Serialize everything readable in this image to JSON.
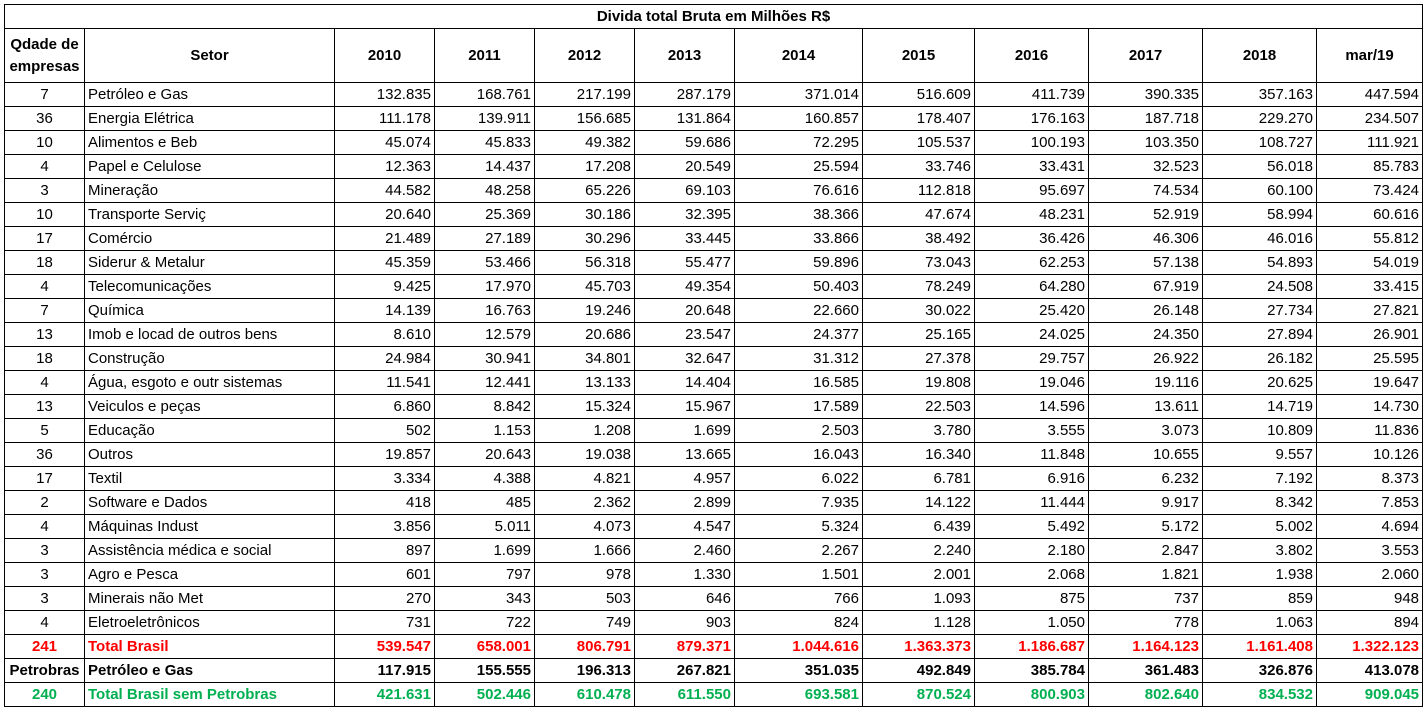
{
  "title": "Divida total Bruta em Milhões R$",
  "headers": {
    "qtd": "Qdade de empresas",
    "setor": "Setor",
    "years": [
      "2010",
      "2011",
      "2012",
      "2013",
      "2014",
      "2015",
      "2016",
      "2017",
      "2018",
      "mar/19"
    ]
  },
  "rows": [
    {
      "qtd": "7",
      "setor": "Petróleo e Gas",
      "values": [
        "132.835",
        "168.761",
        "217.199",
        "287.179",
        "371.014",
        "516.609",
        "411.739",
        "390.335",
        "357.163",
        "447.594"
      ]
    },
    {
      "qtd": "36",
      "setor": "Energia Elétrica",
      "values": [
        "111.178",
        "139.911",
        "156.685",
        "131.864",
        "160.857",
        "178.407",
        "176.163",
        "187.718",
        "229.270",
        "234.507"
      ]
    },
    {
      "qtd": "10",
      "setor": "Alimentos e Beb",
      "values": [
        "45.074",
        "45.833",
        "49.382",
        "59.686",
        "72.295",
        "105.537",
        "100.193",
        "103.350",
        "108.727",
        "111.921"
      ]
    },
    {
      "qtd": "4",
      "setor": "Papel e Celulose",
      "values": [
        "12.363",
        "14.437",
        "17.208",
        "20.549",
        "25.594",
        "33.746",
        "33.431",
        "32.523",
        "56.018",
        "85.783"
      ]
    },
    {
      "qtd": "3",
      "setor": "Mineração",
      "values": [
        "44.582",
        "48.258",
        "65.226",
        "69.103",
        "76.616",
        "112.818",
        "95.697",
        "74.534",
        "60.100",
        "73.424"
      ]
    },
    {
      "qtd": "10",
      "setor": "Transporte Serviç",
      "values": [
        "20.640",
        "25.369",
        "30.186",
        "32.395",
        "38.366",
        "47.674",
        "48.231",
        "52.919",
        "58.994",
        "60.616"
      ]
    },
    {
      "qtd": "17",
      "setor": "Comércio",
      "values": [
        "21.489",
        "27.189",
        "30.296",
        "33.445",
        "33.866",
        "38.492",
        "36.426",
        "46.306",
        "46.016",
        "55.812"
      ]
    },
    {
      "qtd": "18",
      "setor": "Siderur & Metalur",
      "values": [
        "45.359",
        "53.466",
        "56.318",
        "55.477",
        "59.896",
        "73.043",
        "62.253",
        "57.138",
        "54.893",
        "54.019"
      ]
    },
    {
      "qtd": "4",
      "setor": "Telecomunicações",
      "values": [
        "9.425",
        "17.970",
        "45.703",
        "49.354",
        "50.403",
        "78.249",
        "64.280",
        "67.919",
        "24.508",
        "33.415"
      ]
    },
    {
      "qtd": "7",
      "setor": "Química",
      "values": [
        "14.139",
        "16.763",
        "19.246",
        "20.648",
        "22.660",
        "30.022",
        "25.420",
        "26.148",
        "27.734",
        "27.821"
      ]
    },
    {
      "qtd": "13",
      "setor": "Imob e locad de outros bens",
      "values": [
        "8.610",
        "12.579",
        "20.686",
        "23.547",
        "24.377",
        "25.165",
        "24.025",
        "24.350",
        "27.894",
        "26.901"
      ]
    },
    {
      "qtd": "18",
      "setor": "Construção",
      "values": [
        "24.984",
        "30.941",
        "34.801",
        "32.647",
        "31.312",
        "27.378",
        "29.757",
        "26.922",
        "26.182",
        "25.595"
      ]
    },
    {
      "qtd": "4",
      "setor": "Água, esgoto e outr sistemas",
      "values": [
        "11.541",
        "12.441",
        "13.133",
        "14.404",
        "16.585",
        "19.808",
        "19.046",
        "19.116",
        "20.625",
        "19.647"
      ]
    },
    {
      "qtd": "13",
      "setor": "Veiculos e peças",
      "values": [
        "6.860",
        "8.842",
        "15.324",
        "15.967",
        "17.589",
        "22.503",
        "14.596",
        "13.611",
        "14.719",
        "14.730"
      ]
    },
    {
      "qtd": "5",
      "setor": "Educação",
      "values": [
        "502",
        "1.153",
        "1.208",
        "1.699",
        "2.503",
        "3.780",
        "3.555",
        "3.073",
        "10.809",
        "11.836"
      ]
    },
    {
      "qtd": "36",
      "setor": "Outros",
      "values": [
        "19.857",
        "20.643",
        "19.038",
        "13.665",
        "16.043",
        "16.340",
        "11.848",
        "10.655",
        "9.557",
        "10.126"
      ]
    },
    {
      "qtd": "17",
      "setor": "Textil",
      "values": [
        "3.334",
        "4.388",
        "4.821",
        "4.957",
        "6.022",
        "6.781",
        "6.916",
        "6.232",
        "7.192",
        "8.373"
      ]
    },
    {
      "qtd": "2",
      "setor": "Software e Dados",
      "values": [
        "418",
        "485",
        "2.362",
        "2.899",
        "7.935",
        "14.122",
        "11.444",
        "9.917",
        "8.342",
        "7.853"
      ]
    },
    {
      "qtd": "4",
      "setor": "Máquinas Indust",
      "values": [
        "3.856",
        "5.011",
        "4.073",
        "4.547",
        "5.324",
        "6.439",
        "5.492",
        "5.172",
        "5.002",
        "4.694"
      ]
    },
    {
      "qtd": "3",
      "setor": "Assistência médica e social",
      "values": [
        "897",
        "1.699",
        "1.666",
        "2.460",
        "2.267",
        "2.240",
        "2.180",
        "2.847",
        "3.802",
        "3.553"
      ]
    },
    {
      "qtd": "3",
      "setor": "Agro e Pesca",
      "values": [
        "601",
        "797",
        "978",
        "1.330",
        "1.501",
        "2.001",
        "2.068",
        "1.821",
        "1.938",
        "2.060"
      ]
    },
    {
      "qtd": "3",
      "setor": "Minerais não Met",
      "values": [
        "270",
        "343",
        "503",
        "646",
        "766",
        "1.093",
        "875",
        "737",
        "859",
        "948"
      ]
    },
    {
      "qtd": "4",
      "setor": "Eletroeletrônicos",
      "values": [
        "731",
        "722",
        "749",
        "903",
        "824",
        "1.128",
        "1.050",
        "778",
        "1.063",
        "894"
      ]
    }
  ],
  "totals": [
    {
      "style": "red",
      "qtd": "241",
      "setor": "Total Brasil",
      "values": [
        "539.547",
        "658.001",
        "806.791",
        "879.371",
        "1.044.616",
        "1.363.373",
        "1.186.687",
        "1.164.123",
        "1.161.408",
        "1.322.123"
      ]
    },
    {
      "style": "bold",
      "qtd": "Petrobras",
      "setor": "Petróleo e Gas",
      "values": [
        "117.915",
        "155.555",
        "196.313",
        "267.821",
        "351.035",
        "492.849",
        "385.784",
        "361.483",
        "326.876",
        "413.078"
      ]
    },
    {
      "style": "green",
      "qtd": "240",
      "setor": "Total Brasil sem Petrobras",
      "values": [
        "421.631",
        "502.446",
        "610.478",
        "611.550",
        "693.581",
        "870.524",
        "800.903",
        "802.640",
        "834.532",
        "909.045"
      ]
    }
  ],
  "colors": {
    "total_red": "#ff0000",
    "total_green": "#00b050"
  }
}
